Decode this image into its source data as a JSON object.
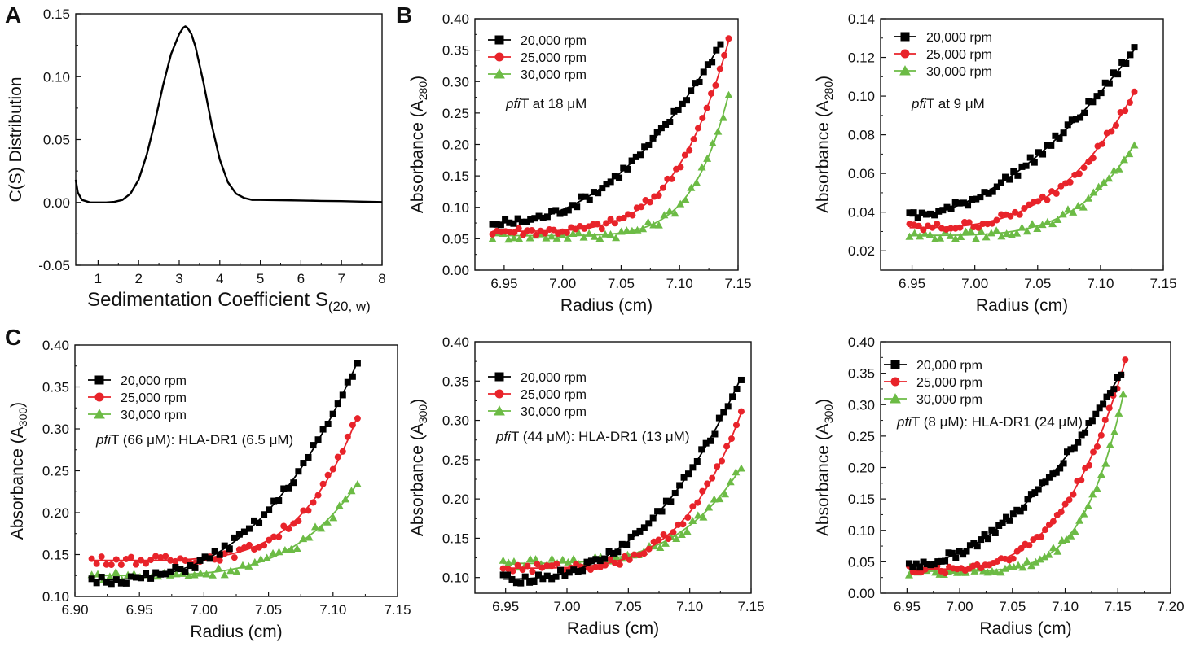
{
  "figure": {
    "panel_labels": [
      "A",
      "B",
      "C"
    ],
    "colors": {
      "20k": "#000000",
      "25k": "#e8232a",
      "30k": "#6cbb45"
    }
  },
  "chart_data": [
    {
      "id": "A",
      "type": "line",
      "title": "",
      "xlabel": "Sedimentation Coefficient S",
      "xlabel_sub": "(20, w)",
      "ylabel": "C(S) Distribution",
      "xlim": [
        0.45,
        8
      ],
      "ylim": [
        -0.05,
        0.15
      ],
      "xticks": [
        1,
        2,
        3,
        4,
        5,
        6,
        7,
        8
      ],
      "yticks": [
        -0.05,
        0.0,
        0.05,
        0.1,
        0.15
      ],
      "ytick_labels": [
        "-0.05",
        "0.00",
        "0.05",
        "0.10",
        "0.15"
      ],
      "series": [
        {
          "x": [
            0.45,
            0.5,
            0.6,
            0.7,
            0.8,
            1.0,
            1.2,
            1.4,
            1.6,
            1.8,
            2.0,
            2.2,
            2.4,
            2.6,
            2.8,
            3.0,
            3.1,
            3.15,
            3.2,
            3.3,
            3.4,
            3.6,
            3.8,
            4.0,
            4.2,
            4.4,
            4.6,
            4.8,
            5.0,
            5.5,
            6.0,
            6.5,
            7.0,
            7.5,
            8.0
          ],
          "y": [
            0.018,
            0.008,
            0.002,
            0.001,
            0.0,
            0.0,
            0.0,
            0.0004,
            0.002,
            0.007,
            0.018,
            0.038,
            0.064,
            0.093,
            0.118,
            0.134,
            0.139,
            0.14,
            0.139,
            0.134,
            0.124,
            0.095,
            0.062,
            0.034,
            0.016,
            0.007,
            0.0035,
            0.002,
            0.002,
            0.0018,
            0.0015,
            0.0012,
            0.001,
            0.0006,
            0.0003
          ]
        }
      ]
    },
    {
      "id": "B1",
      "type": "scatter",
      "title": "",
      "xlabel": "Radius (cm)",
      "ylabel": "Absorbance (A",
      "ylabel_sub": "280",
      "ylabel_end": ")",
      "xlim": [
        6.925,
        7.15
      ],
      "ylim": [
        0.0,
        0.4
      ],
      "xticks": [
        6.95,
        7.0,
        7.05,
        7.1,
        7.15
      ],
      "xtick_labels": [
        "6.95",
        "7.00",
        "7.05",
        "7.10",
        "7.15"
      ],
      "yticks": [
        0.0,
        0.05,
        0.1,
        0.15,
        0.2,
        0.25,
        0.3,
        0.35,
        0.4
      ],
      "ytick_labels": [
        "0.00",
        "0.05",
        "0.10",
        "0.15",
        "0.20",
        "0.25",
        "0.30",
        "0.35",
        "0.40"
      ],
      "annotation": {
        "italic": "pfi",
        "text": "T at 18 μM"
      },
      "legend": [
        "20,000 rpm",
        "25,000 rpm",
        "30,000 rpm"
      ],
      "series": [
        {
          "name": "20,000 rpm",
          "x0": 6.94,
          "x1": 7.135,
          "y_lo": 0.075,
          "y_hi": 0.36,
          "p": 2.2,
          "n": 55
        },
        {
          "name": "25,000 rpm",
          "x0": 6.94,
          "x1": 7.142,
          "y_lo": 0.062,
          "y_hi": 0.365,
          "p": 4.5,
          "n": 55
        },
        {
          "name": "30,000 rpm",
          "x0": 6.94,
          "x1": 7.142,
          "y_lo": 0.055,
          "y_hi": 0.28,
          "p": 6.5,
          "n": 45
        }
      ]
    },
    {
      "id": "B2",
      "type": "scatter",
      "title": "",
      "xlabel": "Radius (cm)",
      "ylabel": "Absorbance (A",
      "ylabel_sub": "280",
      "ylabel_end": ")",
      "xlim": [
        6.925,
        7.15
      ],
      "ylim": [
        0.01,
        0.14
      ],
      "xticks": [
        6.95,
        7.0,
        7.05,
        7.1,
        7.15
      ],
      "xtick_labels": [
        "6.95",
        "7.00",
        "7.05",
        "7.10",
        "7.15"
      ],
      "yticks": [
        0.02,
        0.04,
        0.06,
        0.08,
        0.1,
        0.12,
        0.14
      ],
      "ytick_labels": [
        "0.02",
        "0.04",
        "0.06",
        "0.08",
        "0.10",
        "0.12",
        "0.14"
      ],
      "annotation": {
        "italic": "pfi",
        "text": "T at 9 μM"
      },
      "legend": [
        "20,000 rpm",
        "25,000 rpm",
        "30,000 rpm"
      ],
      "series": [
        {
          "name": "20,000 rpm",
          "x0": 6.948,
          "x1": 7.127,
          "y_lo": 0.038,
          "y_hi": 0.124,
          "p": 1.8,
          "n": 55
        },
        {
          "name": "25,000 rpm",
          "x0": 6.948,
          "x1": 7.127,
          "y_lo": 0.032,
          "y_hi": 0.102,
          "p": 3.0,
          "n": 50
        },
        {
          "name": "30,000 rpm",
          "x0": 6.948,
          "x1": 7.127,
          "y_lo": 0.028,
          "y_hi": 0.075,
          "p": 4.0,
          "n": 45
        }
      ]
    },
    {
      "id": "C1",
      "type": "scatter",
      "title": "",
      "xlabel": "Radius (cm)",
      "ylabel": "Absorbance (A",
      "ylabel_sub": "300",
      "ylabel_end": ")",
      "xlim": [
        6.9,
        7.15
      ],
      "ylim": [
        0.1,
        0.4
      ],
      "xticks": [
        6.9,
        6.95,
        7.0,
        7.05,
        7.1,
        7.15
      ],
      "xtick_labels": [
        "6.90",
        "6.95",
        "7.00",
        "7.05",
        "7.10",
        "7.15"
      ],
      "yticks": [
        0.1,
        0.15,
        0.2,
        0.25,
        0.3,
        0.35,
        0.4
      ],
      "ytick_labels": [
        "0.10",
        "0.15",
        "0.20",
        "0.25",
        "0.30",
        "0.35",
        "0.40"
      ],
      "annotation": {
        "italic": "pfi",
        "text": "T (66 μM): HLA-DR1 (6.5 μM)"
      },
      "legend": [
        "20,000 rpm",
        "25,000 rpm",
        "30,000 rpm"
      ],
      "series": [
        {
          "name": "20,000 rpm",
          "x0": 6.913,
          "x1": 7.119,
          "y_lo": 0.12,
          "y_hi": 0.38,
          "p": 2.8,
          "n": 55
        },
        {
          "name": "25,000 rpm",
          "x0": 6.913,
          "x1": 7.119,
          "y_lo": 0.143,
          "y_hi": 0.315,
          "p": 4.8,
          "n": 55
        },
        {
          "name": "30,000 rpm",
          "x0": 6.913,
          "x1": 7.119,
          "y_lo": 0.125,
          "y_hi": 0.235,
          "p": 4.2,
          "n": 45
        }
      ]
    },
    {
      "id": "C2",
      "type": "scatter",
      "title": "",
      "xlabel": "Radius (cm)",
      "ylabel": "Absorbance (A",
      "ylabel_sub": "300",
      "ylabel_end": ")",
      "xlim": [
        6.925,
        7.15
      ],
      "ylim": [
        0.08,
        0.4
      ],
      "xticks": [
        6.95,
        7.0,
        7.05,
        7.1,
        7.15
      ],
      "xtick_labels": [
        "6.95",
        "7.00",
        "7.05",
        "7.10",
        "7.15"
      ],
      "yticks": [
        0.1,
        0.15,
        0.2,
        0.25,
        0.3,
        0.35,
        0.4
      ],
      "ytick_labels": [
        "0.10",
        "0.15",
        "0.20",
        "0.25",
        "0.30",
        "0.35",
        "0.40"
      ],
      "annotation": {
        "italic": "pfi",
        "text": "T (44 μM): HLA-DR1 (13 μM)"
      },
      "legend": [
        "20,000 rpm",
        "25,000 rpm",
        "30,000 rpm"
      ],
      "series": [
        {
          "name": "20,000 rpm",
          "x0": 6.948,
          "x1": 7.142,
          "y_lo": 0.098,
          "y_hi": 0.355,
          "p": 2.6,
          "n": 55
        },
        {
          "name": "25,000 rpm",
          "x0": 6.948,
          "x1": 7.142,
          "y_lo": 0.112,
          "y_hi": 0.31,
          "p": 4.2,
          "n": 50
        },
        {
          "name": "30,000 rpm",
          "x0": 6.948,
          "x1": 7.142,
          "y_lo": 0.118,
          "y_hi": 0.24,
          "p": 3.8,
          "n": 45
        }
      ]
    },
    {
      "id": "C3",
      "type": "scatter",
      "title": "",
      "xlabel": "Radius (cm)",
      "ylabel": "Absorbance (A",
      "ylabel_sub": "300",
      "ylabel_end": ")",
      "xlim": [
        6.925,
        7.2
      ],
      "ylim": [
        0.0,
        0.4
      ],
      "xticks": [
        6.95,
        7.0,
        7.05,
        7.1,
        7.15,
        7.2
      ],
      "xtick_labels": [
        "6.95",
        "7.00",
        "7.05",
        "7.10",
        "7.15",
        "7.20"
      ],
      "yticks": [
        0.0,
        0.05,
        0.1,
        0.15,
        0.2,
        0.25,
        0.3,
        0.35,
        0.4
      ],
      "ytick_labels": [
        "0.00",
        "0.05",
        "0.10",
        "0.15",
        "0.20",
        "0.25",
        "0.30",
        "0.35",
        "0.40"
      ],
      "annotation": {
        "italic": "pfi",
        "text": "T (8 μM): HLA-DR1 (24 μM)"
      },
      "legend": [
        "20,000 rpm",
        "25,000 rpm",
        "30,000 rpm"
      ],
      "series": [
        {
          "name": "20,000 rpm",
          "x0": 6.952,
          "x1": 7.153,
          "y_lo": 0.045,
          "y_hi": 0.35,
          "p": 1.9,
          "n": 60
        },
        {
          "name": "25,000 rpm",
          "x0": 6.952,
          "x1": 7.157,
          "y_lo": 0.038,
          "y_hi": 0.37,
          "p": 3.6,
          "n": 55
        },
        {
          "name": "30,000 rpm",
          "x0": 6.952,
          "x1": 7.155,
          "y_lo": 0.035,
          "y_hi": 0.315,
          "p": 5.5,
          "n": 50
        }
      ]
    }
  ]
}
